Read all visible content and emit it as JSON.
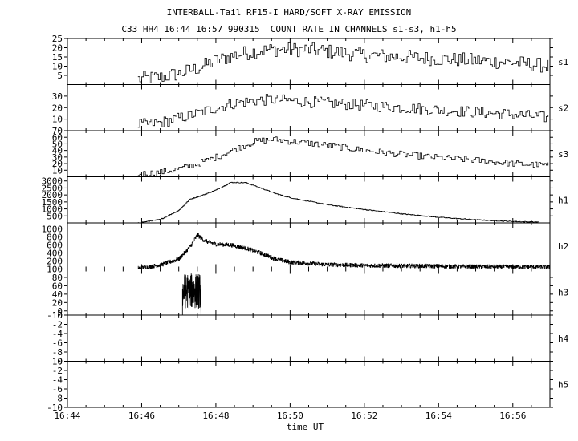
{
  "title": "INTERBALL-Tail RF15-I HARD/SOFT X-RAY EMISSION",
  "subtitle": "C33 HH4 16:44 16:57 990315  COUNT RATE IN CHANNELS s1-s3, h1-h5",
  "chart_data": {
    "type": "line",
    "xlabel": "time UT",
    "xlim": [
      "16:44",
      "16:57"
    ],
    "x_tick_labels": [
      "16:44",
      "16:46",
      "16:48",
      "16:50",
      "16:52",
      "16:54",
      "16:56"
    ],
    "x_ticks_minutes": [
      0,
      2,
      4,
      6,
      8,
      10,
      12
    ],
    "data_start_minute": 1.9,
    "grid": false,
    "panels": [
      {
        "name": "s1",
        "ylim": [
          0,
          25
        ],
        "ytick_labels": [
          "5",
          "10",
          "15",
          "20",
          "25"
        ],
        "yticks": [
          5,
          10,
          15,
          20,
          25
        ],
        "envelope_time_min": [
          1.9,
          2.5,
          3.0,
          3.5,
          4.0,
          4.5,
          5.0,
          5.5,
          6.0,
          6.5,
          7.0,
          7.5,
          8.0,
          9.0,
          10.0,
          11.0,
          12.0,
          13.0
        ],
        "envelope_values": [
          3,
          4,
          6,
          9,
          13,
          16,
          18,
          19,
          19,
          19,
          18,
          17,
          16,
          15,
          14,
          13,
          12,
          10
        ],
        "noise": 4,
        "step_min": 0.05
      },
      {
        "name": "s2",
        "ylim": [
          0,
          40
        ],
        "ytick_labels": [
          "10",
          "20",
          "30"
        ],
        "yticks": [
          10,
          20,
          30
        ],
        "envelope_time_min": [
          1.9,
          2.5,
          3.0,
          3.5,
          4.0,
          4.5,
          5.0,
          5.5,
          6.0,
          7.0,
          8.0,
          9.0,
          10.0,
          11.0,
          12.0,
          13.0
        ],
        "envelope_values": [
          5,
          7,
          11,
          15,
          20,
          24,
          26,
          27,
          26,
          24,
          22,
          20,
          18,
          16,
          14,
          11
        ],
        "noise": 5,
        "step_min": 0.05
      },
      {
        "name": "s3",
        "ylim": [
          0,
          70
        ],
        "ytick_labels": [
          "10",
          "20",
          "30",
          "40",
          "50",
          "60",
          "70"
        ],
        "yticks": [
          10,
          20,
          30,
          40,
          50,
          60,
          70
        ],
        "envelope_time_min": [
          1.9,
          2.5,
          3.0,
          3.5,
          4.0,
          4.5,
          5.0,
          5.5,
          6.0,
          7.0,
          8.0,
          9.0,
          10.0,
          11.0,
          12.0,
          13.0
        ],
        "envelope_values": [
          4,
          7,
          12,
          20,
          30,
          42,
          53,
          57,
          54,
          48,
          40,
          34,
          29,
          25,
          20,
          17
        ],
        "noise": 5,
        "step_min": 0.05
      },
      {
        "name": "h1",
        "ylim": [
          0,
          3300
        ],
        "ytick_labels": [
          "500",
          "1000",
          "1500",
          "2000",
          "2500",
          "3000"
        ],
        "yticks": [
          500,
          1000,
          1500,
          2000,
          2500,
          3000
        ],
        "envelope_time_min": [
          1.9,
          2.5,
          3.0,
          3.3,
          3.6,
          4.0,
          4.4,
          4.8,
          5.2,
          5.6,
          6.0,
          7.0,
          8.0,
          9.0,
          10.0,
          11.0,
          12.0,
          12.7
        ],
        "envelope_values": [
          0,
          250,
          900,
          1700,
          1950,
          2350,
          2900,
          2880,
          2500,
          2100,
          1800,
          1300,
          950,
          650,
          400,
          220,
          100,
          50
        ],
        "noise": 30,
        "step_min": 0.02
      },
      {
        "name": "h2",
        "ylim": [
          0,
          1150
        ],
        "ytick_labels": [
          "200",
          "400",
          "600",
          "800",
          "1000"
        ],
        "yticks": [
          200,
          400,
          600,
          800,
          1000
        ],
        "envelope_time_min": [
          1.6,
          2.0,
          2.5,
          3.0,
          3.3,
          3.5,
          3.7,
          4.0,
          4.4,
          4.8,
          5.2,
          5.6,
          6.0,
          7.0,
          8.0,
          9.0,
          10.0,
          11.0,
          12.0,
          13.0
        ],
        "envelope_values": [
          0,
          30,
          100,
          250,
          550,
          850,
          700,
          620,
          600,
          520,
          400,
          250,
          170,
          110,
          90,
          80,
          70,
          60,
          55,
          50
        ],
        "noise": 50,
        "step_min": 0.008
      },
      {
        "name": "h3",
        "ylim": [
          -10,
          100
        ],
        "ytick_labels": [
          "-10",
          "0",
          "20",
          "40",
          "60",
          "80",
          "100"
        ],
        "yticks": [
          -10,
          0,
          20,
          40,
          60,
          80,
          100
        ],
        "burst_time_min": [
          3.1,
          3.6
        ],
        "burst_min": 5,
        "burst_max": 90,
        "baseline": -10,
        "step_min": 0.004
      },
      {
        "name": "h4",
        "ylim": [
          -10,
          0
        ],
        "ytick_labels": [
          "-10",
          "-8",
          "-6",
          "-4",
          "-2",
          "0"
        ],
        "yticks": [
          -10,
          -8,
          -6,
          -4,
          -2,
          0
        ]
      },
      {
        "name": "h5",
        "ylim": [
          -10,
          0
        ],
        "ytick_labels": [
          "-10",
          "-8",
          "-6",
          "-4",
          "-2",
          "0"
        ],
        "yticks": [
          -10,
          -8,
          -6,
          -4,
          -2,
          0
        ]
      }
    ]
  }
}
